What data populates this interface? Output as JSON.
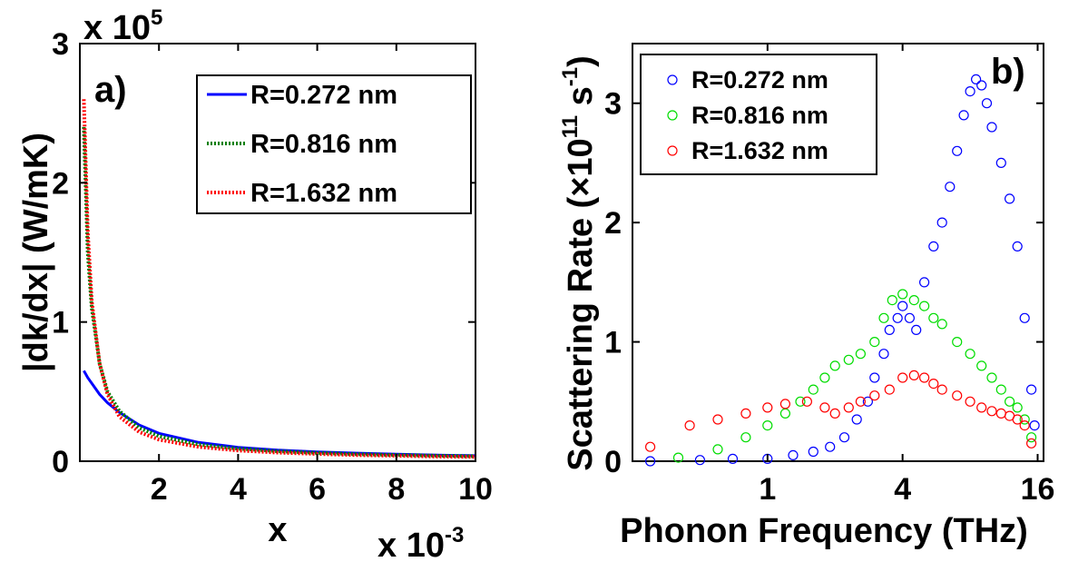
{
  "chart_data": [
    {
      "type": "line",
      "panel_label": "a)",
      "xlabel": "x",
      "ylabel": "|dk/dx| (W/mK)",
      "xlim": [
        0,
        0.01
      ],
      "ylim": [
        0,
        300000
      ],
      "x_multiplier": "x 10",
      "x_multiplier_exp": "-3",
      "y_multiplier": "x 10",
      "y_multiplier_exp": "5",
      "x_ticks": [
        "2",
        "4",
        "6",
        "8",
        "10"
      ],
      "y_ticks": [
        "0",
        "1",
        "2",
        "3"
      ],
      "legend_position": "top-right",
      "x": [
        0.0001,
        0.0002,
        0.0003,
        0.0005,
        0.0007,
        0.001,
        0.0015,
        0.002,
        0.003,
        0.004,
        0.005,
        0.006,
        0.007,
        0.008,
        0.009,
        0.01
      ],
      "series": [
        {
          "name": "R=0.272 nm",
          "color": "#0000ff",
          "style": "solid",
          "values": [
            65000,
            60000,
            56000,
            48000,
            42000,
            35000,
            26000,
            20000,
            13500,
            10000,
            8000,
            6700,
            5800,
            5000,
            4400,
            4000
          ]
        },
        {
          "name": "R=0.816 nm",
          "color": "#008000",
          "style": "dotted",
          "values": [
            240000,
            150000,
            110000,
            70000,
            50000,
            36000,
            24000,
            18000,
            12000,
            9000,
            7200,
            6000,
            5100,
            4500,
            4000,
            3600
          ]
        },
        {
          "name": "R=1.632 nm",
          "color": "#ff0000",
          "style": "dotted",
          "values": [
            260000,
            165000,
            115000,
            70000,
            48000,
            32000,
            21000,
            15500,
            10300,
            7700,
            6200,
            5200,
            4400,
            3900,
            3400,
            3100
          ]
        }
      ]
    },
    {
      "type": "scatter",
      "panel_label": "b)",
      "xlabel": "Phonon Frequency (THz)",
      "ylabel": "Scattering Rate (×10",
      "ylabel_exp": "11",
      "ylabel_unit": "s",
      "ylabel_unit_exp": "-1",
      "ylabel_close": ")",
      "x_scale": "log2",
      "xlim": [
        0.25,
        17
      ],
      "ylim": [
        0,
        3.5
      ],
      "x_ticks": [
        "1",
        "4",
        "16"
      ],
      "y_ticks": [
        "0",
        "1",
        "2",
        "3"
      ],
      "legend_position": "top-left",
      "series": [
        {
          "name": "R=0.272 nm",
          "color": "#0000ff",
          "points": [
            [
              0.3,
              0.0
            ],
            [
              0.5,
              0.01
            ],
            [
              0.7,
              0.02
            ],
            [
              1.0,
              0.02
            ],
            [
              1.3,
              0.05
            ],
            [
              1.6,
              0.08
            ],
            [
              1.9,
              0.12
            ],
            [
              2.2,
              0.2
            ],
            [
              2.5,
              0.35
            ],
            [
              2.8,
              0.5
            ],
            [
              3.0,
              0.7
            ],
            [
              3.3,
              0.9
            ],
            [
              3.5,
              1.1
            ],
            [
              3.8,
              1.2
            ],
            [
              4.0,
              1.3
            ],
            [
              4.3,
              1.2
            ],
            [
              4.6,
              1.1
            ],
            [
              5.0,
              1.5
            ],
            [
              5.5,
              1.8
            ],
            [
              6.0,
              2.0
            ],
            [
              6.5,
              2.3
            ],
            [
              7.0,
              2.6
            ],
            [
              7.5,
              2.9
            ],
            [
              8.0,
              3.1
            ],
            [
              8.5,
              3.2
            ],
            [
              9.0,
              3.15
            ],
            [
              9.5,
              3.0
            ],
            [
              10,
              2.8
            ],
            [
              11,
              2.5
            ],
            [
              12,
              2.2
            ],
            [
              13,
              1.8
            ],
            [
              14,
              1.2
            ],
            [
              15,
              0.6
            ],
            [
              15.5,
              0.3
            ]
          ]
        },
        {
          "name": "R=0.816 nm",
          "color": "#00dd00",
          "points": [
            [
              0.4,
              0.03
            ],
            [
              0.6,
              0.1
            ],
            [
              0.8,
              0.2
            ],
            [
              1.0,
              0.3
            ],
            [
              1.2,
              0.4
            ],
            [
              1.4,
              0.5
            ],
            [
              1.6,
              0.6
            ],
            [
              1.8,
              0.7
            ],
            [
              2.0,
              0.8
            ],
            [
              2.3,
              0.85
            ],
            [
              2.6,
              0.9
            ],
            [
              3.0,
              1.0
            ],
            [
              3.3,
              1.2
            ],
            [
              3.6,
              1.35
            ],
            [
              4.0,
              1.4
            ],
            [
              4.5,
              1.35
            ],
            [
              5.0,
              1.3
            ],
            [
              5.5,
              1.2
            ],
            [
              6.0,
              1.15
            ],
            [
              7.0,
              1.0
            ],
            [
              8.0,
              0.9
            ],
            [
              9.0,
              0.8
            ],
            [
              10,
              0.7
            ],
            [
              11,
              0.6
            ],
            [
              12,
              0.5
            ],
            [
              13,
              0.45
            ],
            [
              14,
              0.35
            ],
            [
              15,
              0.2
            ]
          ]
        },
        {
          "name": "R=1.632 nm",
          "color": "#ff0000",
          "points": [
            [
              0.3,
              0.12
            ],
            [
              0.45,
              0.3
            ],
            [
              0.6,
              0.35
            ],
            [
              0.8,
              0.4
            ],
            [
              1.0,
              0.45
            ],
            [
              1.2,
              0.48
            ],
            [
              1.5,
              0.5
            ],
            [
              1.8,
              0.45
            ],
            [
              2.0,
              0.4
            ],
            [
              2.3,
              0.45
            ],
            [
              2.6,
              0.5
            ],
            [
              3.0,
              0.55
            ],
            [
              3.5,
              0.6
            ],
            [
              4.0,
              0.7
            ],
            [
              4.5,
              0.72
            ],
            [
              5.0,
              0.7
            ],
            [
              5.5,
              0.65
            ],
            [
              6.0,
              0.6
            ],
            [
              7.0,
              0.55
            ],
            [
              8.0,
              0.5
            ],
            [
              9.0,
              0.45
            ],
            [
              10,
              0.42
            ],
            [
              11,
              0.4
            ],
            [
              12,
              0.38
            ],
            [
              13,
              0.35
            ],
            [
              14,
              0.3
            ],
            [
              15,
              0.15
            ]
          ]
        }
      ]
    }
  ]
}
